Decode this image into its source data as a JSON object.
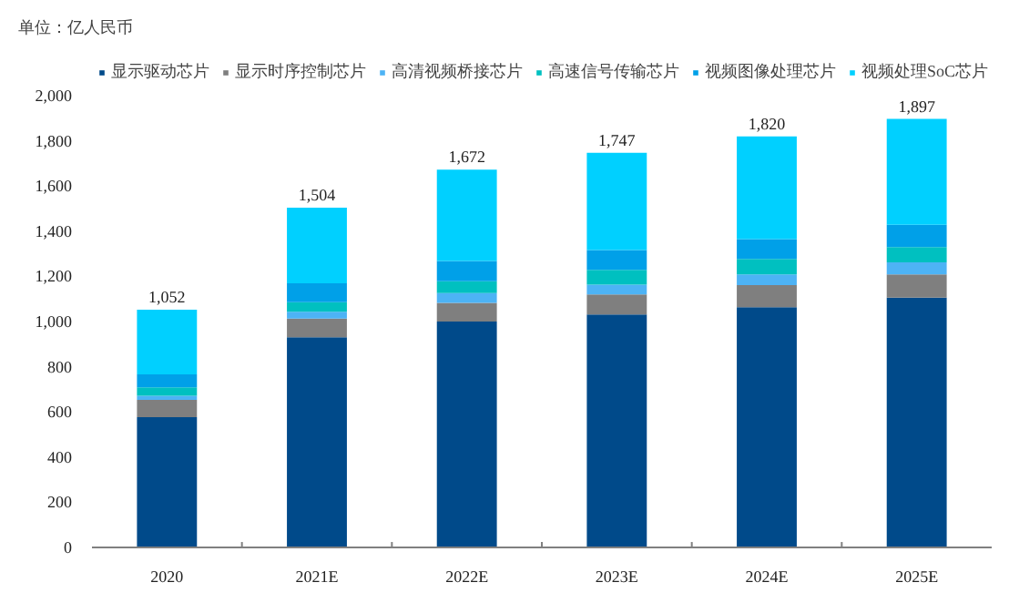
{
  "chart_data": {
    "type": "bar",
    "stacked": true,
    "annotations": [
      "单位：亿人民币"
    ],
    "categories": [
      "2020",
      "2021E",
      "2022E",
      "2023E",
      "2024E",
      "2025E"
    ],
    "series": [
      {
        "name": "显示驱动芯片",
        "color": "#004a8a",
        "values": [
          577,
          930,
          1000,
          1031,
          1064,
          1106
        ]
      },
      {
        "name": "显示时序控制芯片",
        "color": "#7f7f7f",
        "values": [
          76,
          83,
          83,
          89,
          97,
          103
        ]
      },
      {
        "name": "高清视频桥接芯片",
        "color": "#4db3f5",
        "values": [
          18,
          30,
          43,
          43,
          48,
          53
        ]
      },
      {
        "name": "高速信号传输芯片",
        "color": "#00c0c0",
        "values": [
          38,
          43,
          52,
          66,
          68,
          68
        ]
      },
      {
        "name": "视频图像处理芯片",
        "color": "#00a0e8",
        "values": [
          57,
          83,
          90,
          88,
          88,
          98
        ]
      },
      {
        "name": "视频处理SoC芯片",
        "color": "#00d0ff",
        "values": [
          286,
          335,
          404,
          430,
          455,
          469
        ]
      }
    ],
    "totals": [
      "1,052",
      "1,504",
      "1,672",
      "1,747",
      "1,820",
      "1,897"
    ],
    "ylim": [
      0,
      2000
    ],
    "yticks": [
      {
        "value": 0,
        "label": "0"
      },
      {
        "value": 200,
        "label": "200"
      },
      {
        "value": 400,
        "label": "400"
      },
      {
        "value": 600,
        "label": "600"
      },
      {
        "value": 800,
        "label": "800"
      },
      {
        "value": 1000,
        "label": "1,000"
      },
      {
        "value": 1200,
        "label": "1,200"
      },
      {
        "value": 1400,
        "label": "1,400"
      },
      {
        "value": 1600,
        "label": "1,600"
      },
      {
        "value": 1800,
        "label": "1,800"
      },
      {
        "value": 2000,
        "label": "2,000"
      }
    ],
    "grid": false,
    "legend": "top"
  }
}
